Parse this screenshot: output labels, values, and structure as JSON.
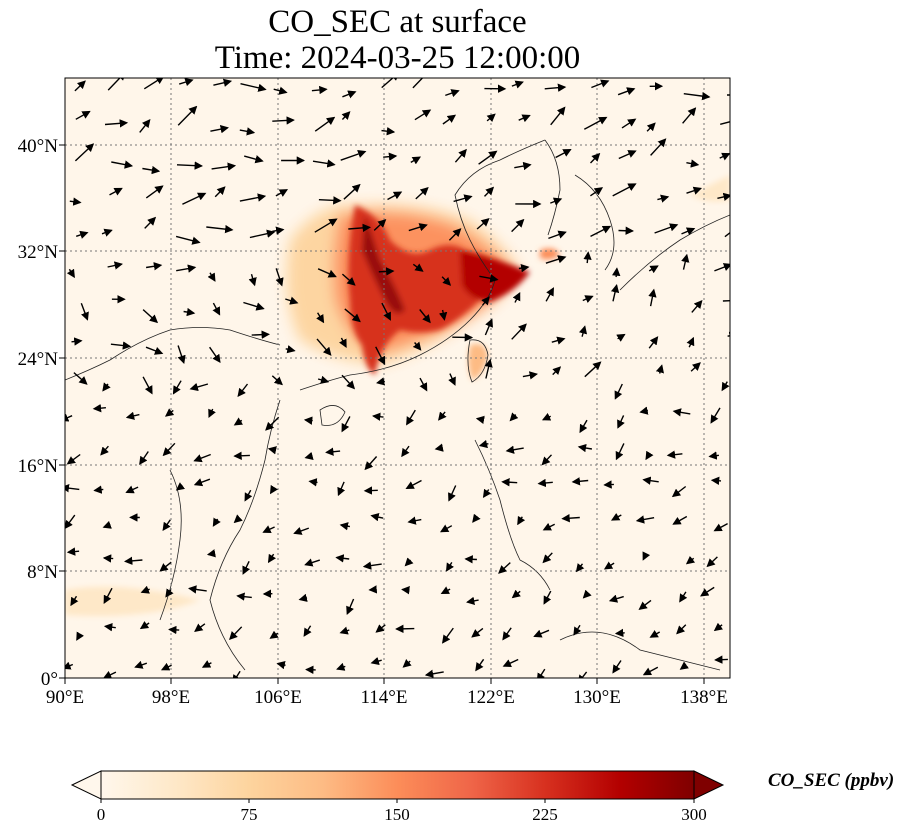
{
  "title": {
    "line1": "CO_SEC at surface",
    "line2": "Time: 2024-03-25 12:00:00"
  },
  "map": {
    "extent": {
      "lon_min": 90,
      "lon_max": 140,
      "lat_min": 0,
      "lat_max": 45
    },
    "lat_ticks": [
      {
        "value": 40,
        "label": "40°N"
      },
      {
        "value": 32,
        "label": "32°N"
      },
      {
        "value": 24,
        "label": "24°N"
      },
      {
        "value": 16,
        "label": "16°N"
      },
      {
        "value": 8,
        "label": "8°N"
      },
      {
        "value": 0,
        "label": "0°"
      }
    ],
    "lon_ticks": [
      {
        "value": 90,
        "label": "90°E"
      },
      {
        "value": 98,
        "label": "98°E"
      },
      {
        "value": 106,
        "label": "106°E"
      },
      {
        "value": 114,
        "label": "114°E"
      },
      {
        "value": 122,
        "label": "122°E"
      },
      {
        "value": 130,
        "label": "130°E"
      },
      {
        "value": 138,
        "label": "138°E"
      }
    ],
    "gridlines": true,
    "colormap": "OrRd"
  },
  "colorbar": {
    "label": "CO_SEC (ppbv)",
    "min": 0,
    "max": 300,
    "ticks": [
      "0",
      "75",
      "150",
      "225",
      "300"
    ],
    "extend": "both",
    "colors": [
      "#fff7ec",
      "#fee8c8",
      "#fdd49e",
      "#fdbb84",
      "#fc8d59",
      "#ef6548",
      "#d7301f",
      "#b30000",
      "#7f0000"
    ]
  }
}
